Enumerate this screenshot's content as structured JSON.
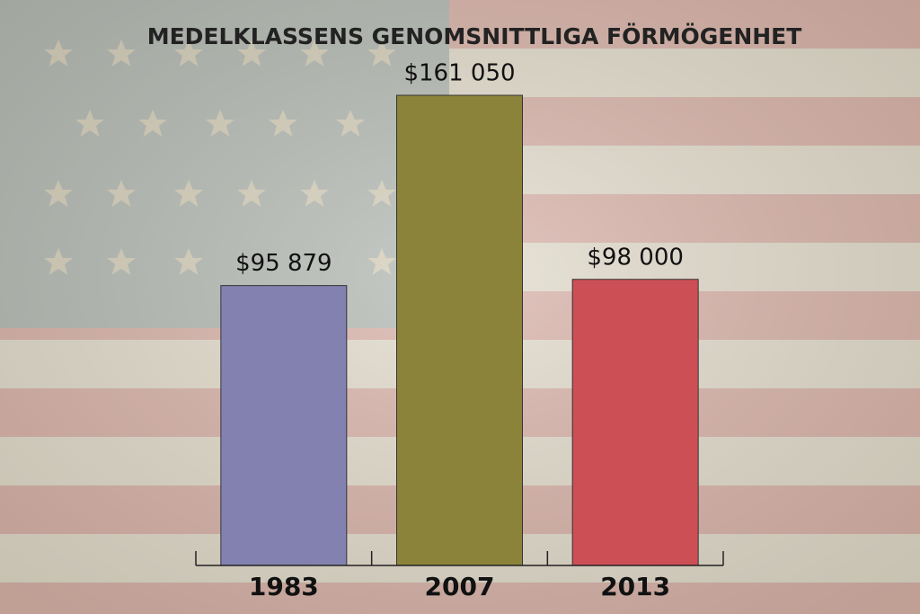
{
  "chart_data": {
    "type": "bar",
    "title": "MEDELKLASSENS GENOMSNITTLIGA FÖRMÖGENHET",
    "categories": [
      "1983",
      "2007",
      "2013"
    ],
    "values": [
      95879,
      161050,
      98000
    ],
    "value_labels": [
      "$95 879",
      "$161 050",
      "$98 000"
    ],
    "colors": [
      "#8381b0",
      "#8c833a",
      "#cd4f56"
    ]
  }
}
